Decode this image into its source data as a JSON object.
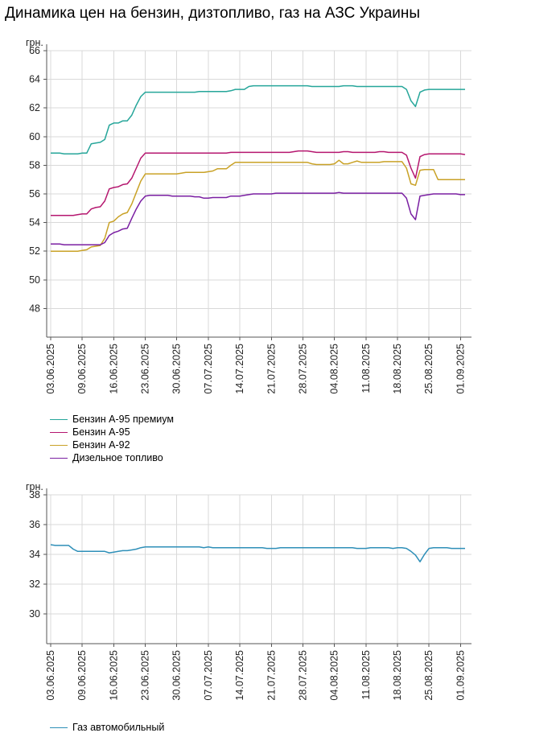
{
  "title": "Динамика цен на бензин, дизтопливо, газ на АЗС Украины",
  "chart_data": [
    {
      "type": "line",
      "unit_label": "грн.",
      "ylim": [
        46,
        66
      ],
      "yticks": [
        48,
        50,
        52,
        54,
        56,
        58,
        60,
        62,
        64,
        66
      ],
      "grid": true,
      "legend_position": "bottom-left",
      "x": [
        "03.06.2025",
        "04.06.2025",
        "05.06.2025",
        "06.06.2025",
        "07.06.2025",
        "08.06.2025",
        "09.06.2025",
        "10.06.2025",
        "11.06.2025",
        "12.06.2025",
        "13.06.2025",
        "14.06.2025",
        "15.06.2025",
        "16.06.2025",
        "17.06.2025",
        "18.06.2025",
        "19.06.2025",
        "20.06.2025",
        "21.06.2025",
        "22.06.2025",
        "23.06.2025",
        "24.06.2025",
        "25.06.2025",
        "26.06.2025",
        "27.06.2025",
        "28.06.2025",
        "29.06.2025",
        "30.06.2025",
        "01.07.2025",
        "02.07.2025",
        "03.07.2025",
        "04.07.2025",
        "05.07.2025",
        "06.07.2025",
        "07.07.2025",
        "08.07.2025",
        "09.07.2025",
        "10.07.2025",
        "11.07.2025",
        "12.07.2025",
        "13.07.2025",
        "14.07.2025",
        "15.07.2025",
        "16.07.2025",
        "17.07.2025",
        "18.07.2025",
        "19.07.2025",
        "20.07.2025",
        "21.07.2025",
        "22.07.2025",
        "23.07.2025",
        "24.07.2025",
        "25.07.2025",
        "26.07.2025",
        "27.07.2025",
        "28.07.2025",
        "29.07.2025",
        "30.07.2025",
        "31.07.2025",
        "01.08.2025",
        "02.08.2025",
        "03.08.2025",
        "04.08.2025",
        "05.08.2025",
        "06.08.2025",
        "07.08.2025",
        "08.08.2025",
        "09.08.2025",
        "10.08.2025",
        "11.08.2025",
        "12.08.2025",
        "13.08.2025",
        "14.08.2025",
        "15.08.2025",
        "16.08.2025",
        "17.08.2025",
        "18.08.2025",
        "19.08.2025",
        "20.08.2025",
        "21.08.2025",
        "22.08.2025",
        "23.08.2025",
        "24.08.2025",
        "25.08.2025",
        "26.08.2025",
        "27.08.2025",
        "28.08.2025",
        "29.08.2025",
        "30.08.2025",
        "31.08.2025",
        "01.09.2025",
        "02.09.2025",
        "03.09.2025"
      ],
      "x_tick_labels": [
        "03.06.2025",
        "09.06.2025",
        "16.06.2025",
        "23.06.2025",
        "30.06.2025",
        "07.07.2025",
        "14.07.2025",
        "21.07.2025",
        "28.07.2025",
        "04.08.2025",
        "11.08.2025",
        "18.08.2025",
        "25.08.2025",
        "01.09.2025"
      ],
      "series": [
        {
          "name": "Бензин А-95 премиум",
          "color": "#26a69a",
          "values": [
            58.85,
            58.85,
            58.85,
            58.8,
            58.8,
            58.8,
            58.8,
            58.85,
            58.85,
            59.5,
            59.55,
            59.6,
            59.8,
            60.8,
            60.95,
            60.95,
            61.1,
            61.1,
            61.5,
            62.2,
            62.8,
            63.1,
            63.1,
            63.1,
            63.1,
            63.1,
            63.1,
            63.1,
            63.1,
            63.1,
            63.1,
            63.1,
            63.1,
            63.15,
            63.15,
            63.15,
            63.15,
            63.15,
            63.15,
            63.15,
            63.2,
            63.3,
            63.3,
            63.3,
            63.5,
            63.55,
            63.55,
            63.55,
            63.55,
            63.55,
            63.55,
            63.55,
            63.55,
            63.55,
            63.55,
            63.55,
            63.55,
            63.55,
            63.5,
            63.5,
            63.5,
            63.5,
            63.5,
            63.5,
            63.5,
            63.55,
            63.55,
            63.55,
            63.5,
            63.5,
            63.5,
            63.5,
            63.5,
            63.5,
            63.5,
            63.5,
            63.5,
            63.5,
            63.5,
            63.3,
            62.5,
            62.1,
            63.1,
            63.25,
            63.3,
            63.3,
            63.3,
            63.3,
            63.3,
            63.3,
            63.3,
            63.3,
            63.3
          ]
        },
        {
          "name": "Бензин А-95",
          "color": "#b5176f",
          "values": [
            54.5,
            54.5,
            54.5,
            54.5,
            54.5,
            54.5,
            54.55,
            54.6,
            54.6,
            54.95,
            55.05,
            55.1,
            55.5,
            56.35,
            56.45,
            56.5,
            56.65,
            56.7,
            57.1,
            57.8,
            58.5,
            58.85,
            58.85,
            58.85,
            58.85,
            58.85,
            58.85,
            58.85,
            58.85,
            58.85,
            58.85,
            58.85,
            58.85,
            58.85,
            58.85,
            58.85,
            58.85,
            58.85,
            58.85,
            58.85,
            58.9,
            58.9,
            58.9,
            58.9,
            58.9,
            58.9,
            58.9,
            58.9,
            58.9,
            58.9,
            58.9,
            58.9,
            58.9,
            58.9,
            58.95,
            59.0,
            59.0,
            59.0,
            58.95,
            58.9,
            58.9,
            58.9,
            58.9,
            58.9,
            58.9,
            58.95,
            58.95,
            58.9,
            58.9,
            58.9,
            58.9,
            58.9,
            58.9,
            58.95,
            58.95,
            58.9,
            58.9,
            58.9,
            58.9,
            58.7,
            57.8,
            57.1,
            58.6,
            58.75,
            58.8,
            58.8,
            58.8,
            58.8,
            58.8,
            58.8,
            58.8,
            58.8,
            58.75
          ]
        },
        {
          "name": "Бензин А-92",
          "color": "#c9a227",
          "values": [
            52.0,
            52.0,
            52.0,
            52.0,
            52.0,
            52.0,
            52.0,
            52.05,
            52.1,
            52.3,
            52.35,
            52.4,
            52.9,
            54.0,
            54.1,
            54.4,
            54.6,
            54.7,
            55.3,
            56.1,
            56.9,
            57.4,
            57.4,
            57.4,
            57.4,
            57.4,
            57.4,
            57.4,
            57.4,
            57.45,
            57.5,
            57.5,
            57.5,
            57.5,
            57.5,
            57.55,
            57.6,
            57.75,
            57.75,
            57.75,
            58.0,
            58.2,
            58.2,
            58.2,
            58.2,
            58.2,
            58.2,
            58.2,
            58.2,
            58.2,
            58.2,
            58.2,
            58.2,
            58.2,
            58.2,
            58.2,
            58.2,
            58.2,
            58.1,
            58.05,
            58.05,
            58.05,
            58.05,
            58.1,
            58.35,
            58.1,
            58.1,
            58.2,
            58.3,
            58.2,
            58.2,
            58.2,
            58.2,
            58.2,
            58.25,
            58.25,
            58.25,
            58.25,
            58.25,
            57.8,
            56.7,
            56.6,
            57.65,
            57.7,
            57.7,
            57.7,
            57.0,
            57.0,
            57.0,
            57.0,
            57.0,
            57.0,
            57.0
          ]
        },
        {
          "name": "Дизельное топливо",
          "color": "#7a1fa2",
          "values": [
            52.5,
            52.5,
            52.5,
            52.45,
            52.45,
            52.45,
            52.45,
            52.45,
            52.45,
            52.45,
            52.45,
            52.45,
            52.6,
            53.1,
            53.3,
            53.4,
            53.55,
            53.6,
            54.3,
            54.95,
            55.5,
            55.85,
            55.9,
            55.9,
            55.9,
            55.9,
            55.9,
            55.85,
            55.85,
            55.85,
            55.85,
            55.85,
            55.8,
            55.8,
            55.7,
            55.7,
            55.75,
            55.75,
            55.75,
            55.75,
            55.85,
            55.85,
            55.85,
            55.9,
            55.95,
            56.0,
            56.0,
            56.0,
            56.0,
            56.0,
            56.05,
            56.05,
            56.05,
            56.05,
            56.05,
            56.05,
            56.05,
            56.05,
            56.05,
            56.05,
            56.05,
            56.05,
            56.05,
            56.05,
            56.1,
            56.05,
            56.05,
            56.05,
            56.05,
            56.05,
            56.05,
            56.05,
            56.05,
            56.05,
            56.05,
            56.05,
            56.05,
            56.05,
            56.05,
            55.7,
            54.6,
            54.2,
            55.85,
            55.9,
            55.95,
            56.0,
            56.0,
            56.0,
            56.0,
            56.0,
            56.0,
            55.95,
            55.95
          ]
        }
      ]
    },
    {
      "type": "line",
      "unit_label": "грн.",
      "ylim": [
        28,
        38
      ],
      "yticks": [
        30,
        32,
        34,
        36,
        38
      ],
      "grid": true,
      "legend_position": "bottom-left",
      "x_tick_labels": [
        "03.06.2025",
        "09.06.2025",
        "16.06.2025",
        "23.06.2025",
        "30.06.2025",
        "07.07.2025",
        "14.07.2025",
        "21.07.2025",
        "28.07.2025",
        "04.08.2025",
        "11.08.2025",
        "18.08.2025",
        "25.08.2025",
        "01.09.2025"
      ],
      "series": [
        {
          "name": "Газ автомобильный",
          "color": "#2e8fb8",
          "values": [
            34.65,
            34.6,
            34.6,
            34.6,
            34.6,
            34.35,
            34.2,
            34.2,
            34.2,
            34.2,
            34.2,
            34.2,
            34.2,
            34.1,
            34.15,
            34.2,
            34.25,
            34.25,
            34.3,
            34.35,
            34.45,
            34.5,
            34.5,
            34.5,
            34.5,
            34.5,
            34.5,
            34.5,
            34.5,
            34.5,
            34.5,
            34.5,
            34.5,
            34.5,
            34.45,
            34.5,
            34.45,
            34.45,
            34.45,
            34.45,
            34.45,
            34.45,
            34.45,
            34.45,
            34.45,
            34.45,
            34.45,
            34.45,
            34.4,
            34.4,
            34.4,
            34.45,
            34.45,
            34.45,
            34.45,
            34.45,
            34.45,
            34.45,
            34.45,
            34.45,
            34.45,
            34.45,
            34.45,
            34.45,
            34.45,
            34.45,
            34.45,
            34.45,
            34.4,
            34.4,
            34.4,
            34.45,
            34.45,
            34.45,
            34.45,
            34.45,
            34.4,
            34.45,
            34.45,
            34.4,
            34.2,
            33.95,
            33.5,
            34.0,
            34.4,
            34.45,
            34.45,
            34.45,
            34.45,
            34.4,
            34.4,
            34.4,
            34.4
          ]
        }
      ]
    }
  ]
}
